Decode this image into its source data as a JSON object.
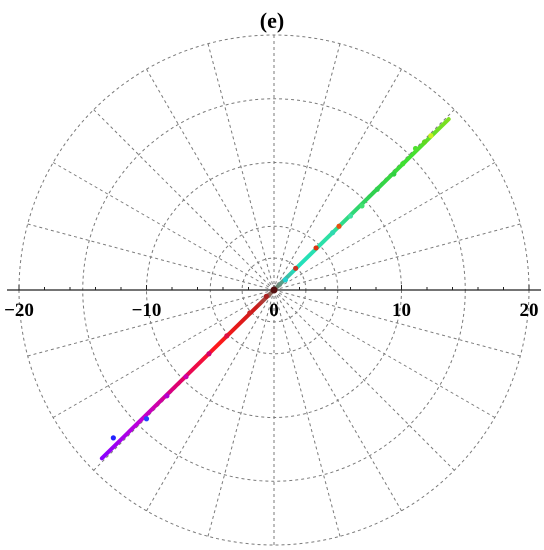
{
  "chart_data": {
    "type": "scatter",
    "coordinate_system": "polar",
    "title": "(e)",
    "xlim": [
      -20,
      20
    ],
    "ylim": [
      -20,
      20
    ],
    "x_ticks": [
      "−20",
      "−10",
      "0",
      "10",
      "20"
    ],
    "x_tick_values": [
      -20,
      -10,
      0,
      10,
      20
    ],
    "polar_grid": {
      "radii": [
        2.5,
        5,
        10,
        15,
        20
      ],
      "angle_step_deg": 15
    },
    "grid": true,
    "series": [
      {
        "line_start": [
          -13.5,
          -13.2
        ],
        "line_end": [
          13.7,
          13.4
        ],
        "gradient_colors": [
          "#8a00ff",
          "#c000d8",
          "#e0006a",
          "#ff1a1a",
          "#cc1a1a",
          "#20e0c0",
          "#30e0a0",
          "#30d050",
          "#40e030",
          "#80e020"
        ],
        "markers": [
          {
            "x": -12.6,
            "y": -11.6,
            "color": "#2222ff"
          },
          {
            "x": -10.0,
            "y": -10.1,
            "color": "#2244ff"
          },
          {
            "x": -8.4,
            "y": -8.3,
            "color": "#b000d0"
          },
          {
            "x": -6.9,
            "y": -6.8,
            "color": "#cc00aa"
          },
          {
            "x": -5.1,
            "y": -5.0,
            "color": "#d00070"
          },
          {
            "x": -3.7,
            "y": -3.6,
            "color": "#dd1144"
          },
          {
            "x": -1.9,
            "y": -1.8,
            "color": "#cc2222"
          },
          {
            "x": -0.6,
            "y": -0.5,
            "color": "#aa2222"
          },
          {
            "x": 0.9,
            "y": 0.8,
            "color": "#22d0d0"
          },
          {
            "x": 1.7,
            "y": 1.7,
            "color": "#cc3322"
          },
          {
            "x": 3.3,
            "y": 3.3,
            "color": "#dd3311"
          },
          {
            "x": 4.6,
            "y": 4.5,
            "color": "#30d8b0"
          },
          {
            "x": 5.1,
            "y": 5.0,
            "color": "#e85010"
          },
          {
            "x": 6.0,
            "y": 5.8,
            "color": "#40e0a0"
          },
          {
            "x": 6.9,
            "y": 6.6,
            "color": "#40e070"
          },
          {
            "x": 8.1,
            "y": 7.9,
            "color": "#30d050"
          },
          {
            "x": 9.4,
            "y": 9.1,
            "color": "#30d040"
          },
          {
            "x": 10.1,
            "y": 9.9,
            "color": "#40e030"
          },
          {
            "x": 11.1,
            "y": 11.1,
            "color": "#50e030"
          },
          {
            "x": 11.8,
            "y": 11.6,
            "color": "#60d820"
          },
          {
            "x": 12.3,
            "y": 12.1,
            "color": "#c8f020"
          }
        ]
      }
    ]
  },
  "colors": {
    "axis": "#222222",
    "grid": "#7a7a7a"
  }
}
